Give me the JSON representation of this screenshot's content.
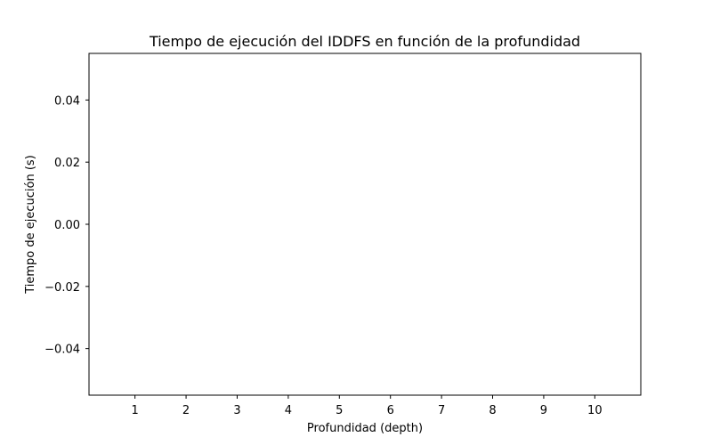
{
  "chart_data": {
    "type": "bar",
    "title": "Tiempo de ejecución del IDDFS en función de la profundidad",
    "xlabel": "Profundidad (depth)",
    "ylabel": "Tiempo de ejecución (s)",
    "categories": [
      "1",
      "2",
      "3",
      "4",
      "5",
      "6",
      "7",
      "8",
      "9",
      "10"
    ],
    "values": [
      0,
      0,
      0,
      0,
      0,
      0,
      0,
      0,
      0,
      0
    ],
    "ylim": [
      -0.055,
      0.055
    ],
    "yticks": [
      0.04,
      0.02,
      0.0,
      -0.02,
      -0.04
    ],
    "ytick_labels": [
      "0.04",
      "0.02",
      "0.00",
      "−0.02",
      "−0.04"
    ],
    "grid": false,
    "colors": {
      "axis": "#000000",
      "background": "#ffffff"
    }
  }
}
